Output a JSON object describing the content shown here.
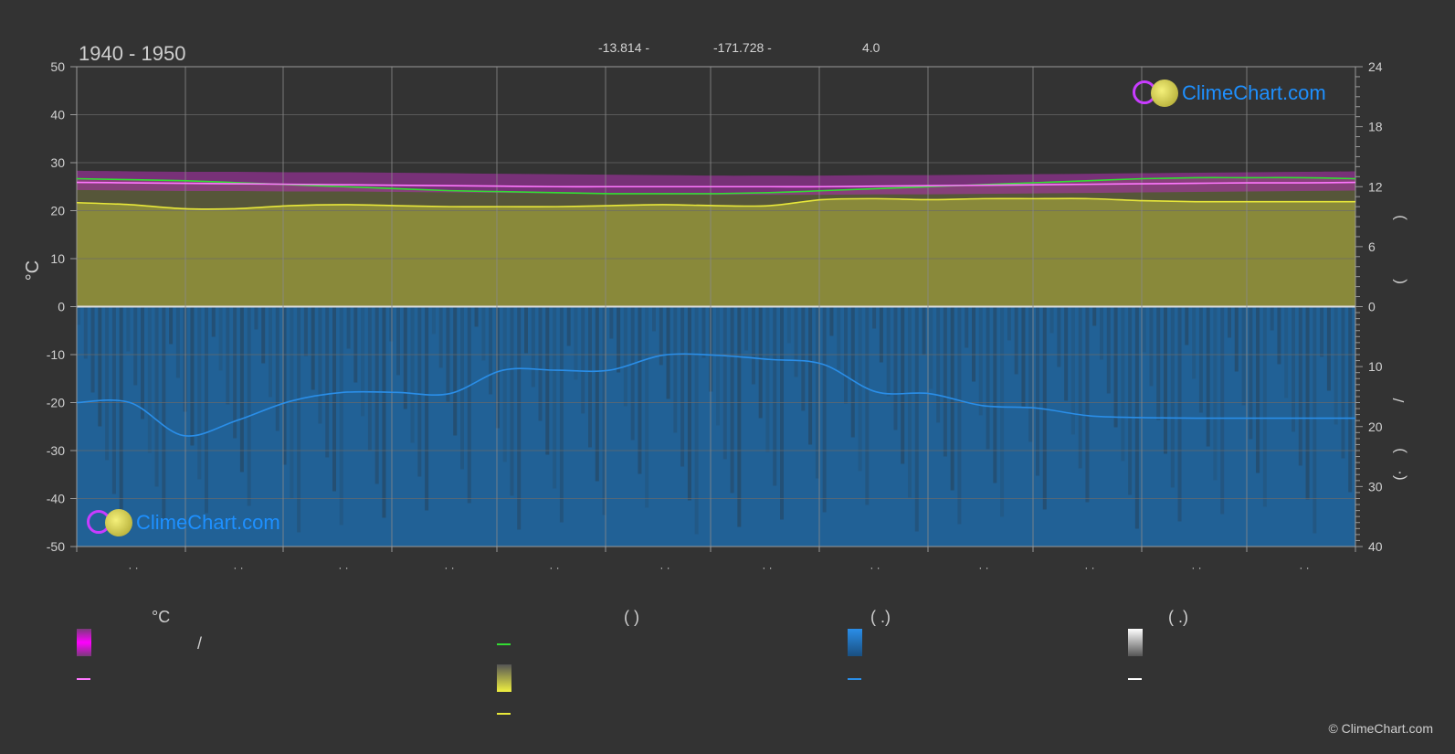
{
  "header": {
    "period": "1940 - 1950",
    "latitude": "-13.814 -",
    "longitude": "-171.728 -",
    "elevation": "4.0"
  },
  "brand": {
    "name": "ClimeChart.com",
    "copyright": "© ClimeChart.com",
    "color": "#1e90ff"
  },
  "legend": {
    "col1_head": "°C",
    "col1_slash": "/",
    "col2_head": "(          )",
    "col3_head": "(   .)",
    "col4_head": "(   .)"
  },
  "colors": {
    "background": "#333333",
    "max_temp": "#ff00ff",
    "mean_temp": "#ff77ff",
    "daylight": "#33dd33",
    "sunshine": "#e8e83a",
    "sunshine_area": "#8c8c3a",
    "precip_area": "#1f6aa8",
    "precip_line": "#2a8ee8",
    "snow": "#ffffff",
    "grid": "#6a6a6a"
  },
  "chart_data": {
    "type": "line",
    "title": "1940 - 1950",
    "ylabel_left": "°C",
    "ylim_left": [
      -50,
      50
    ],
    "ylim_right_top": [
      0,
      24
    ],
    "ylim_right_bottom": [
      0,
      40
    ],
    "ticks_left": [
      "50",
      "40",
      "30",
      "20",
      "10",
      "0",
      "-10",
      "-20",
      "-30",
      "-40",
      "-50"
    ],
    "ticks_right_top": [
      "24",
      "18",
      "12",
      "6",
      "0"
    ],
    "ticks_right_bottom": [
      "10",
      "20",
      "30",
      "40"
    ],
    "right_axis_labels": [
      ")",
      "(",
      "/",
      ")",
      "(·"
    ],
    "x_month_labels": [
      "· ·",
      "· ·",
      "· ·",
      "· ·",
      "· ·",
      "· ·",
      "· ·",
      "· ·",
      "· ·",
      "· ·",
      "· ·",
      "· ·"
    ],
    "x_points": [
      0,
      0.5,
      1,
      1.5,
      2,
      2.5,
      3,
      3.5,
      4,
      4.5,
      5,
      5.5,
      6,
      6.5,
      7,
      7.5,
      8,
      8.5,
      9,
      9.5,
      10,
      10.5,
      11,
      11.5,
      12
    ],
    "series": [
      {
        "key": "max_temp",
        "axis": "left",
        "values": [
          26.5,
          26.4,
          26.3,
          26.3,
          26.2,
          26.2,
          26.1,
          26.0,
          25.9,
          25.8,
          25.7,
          25.6,
          25.5,
          25.5,
          25.5,
          25.6,
          25.6,
          25.7,
          25.8,
          25.9,
          26.0,
          26.1,
          26.2,
          26.3,
          26.4
        ]
      },
      {
        "key": "mean_temp",
        "axis": "left",
        "values": [
          25.9,
          25.8,
          25.7,
          25.6,
          25.5,
          25.4,
          25.3,
          25.2,
          25.1,
          25.0,
          25.0,
          25.0,
          25.0,
          25.0,
          25.0,
          25.1,
          25.2,
          25.3,
          25.4,
          25.5,
          25.6,
          25.7,
          25.8,
          25.8,
          25.9
        ]
      },
      {
        "key": "daylight",
        "axis": "right_top",
        "values": [
          12.8,
          12.7,
          12.6,
          12.4,
          12.2,
          12.0,
          11.8,
          11.6,
          11.5,
          11.4,
          11.3,
          11.3,
          11.3,
          11.4,
          11.6,
          11.8,
          12.0,
          12.2,
          12.4,
          12.6,
          12.8,
          12.9,
          12.9,
          12.9,
          12.8
        ]
      },
      {
        "key": "sunshine",
        "axis": "right_top",
        "values": [
          10.4,
          10.2,
          9.8,
          9.8,
          10.1,
          10.2,
          10.1,
          10.0,
          10.0,
          10.0,
          10.1,
          10.2,
          10.1,
          10.1,
          10.7,
          10.8,
          10.7,
          10.8,
          10.8,
          10.8,
          10.6,
          10.5,
          10.5,
          10.5,
          10.5
        ]
      },
      {
        "key": "precipitation",
        "axis": "right_bottom",
        "values": [
          16.0,
          16.0,
          21.5,
          19.0,
          15.8,
          14.3,
          14.3,
          14.5,
          10.6,
          10.6,
          10.6,
          8.1,
          8.1,
          8.8,
          9.6,
          14.2,
          14.5,
          16.5,
          16.9,
          18.2,
          18.5,
          18.6,
          18.6,
          18.6,
          18.6
        ]
      }
    ]
  }
}
